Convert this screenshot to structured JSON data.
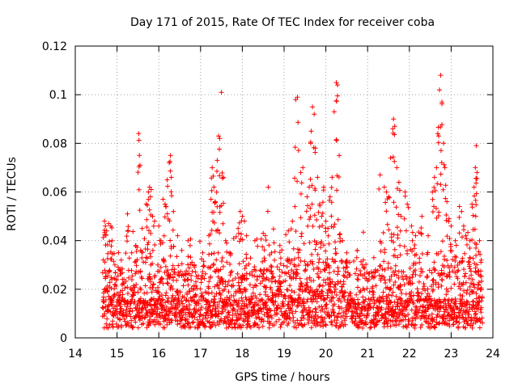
{
  "chart_data": {
    "type": "scatter",
    "title": "Day 171 of 2015, Rate Of TEC Index for receiver coba",
    "xlabel": "GPS time / hours",
    "ylabel": "ROTI / TECUs",
    "xlim": [
      14,
      24
    ],
    "ylim": [
      0,
      0.12
    ],
    "grid": true,
    "marker": "+",
    "color": "#ff0000",
    "x_ticks": [
      "14",
      "15",
      "16",
      "17",
      "18",
      "19",
      "20",
      "21",
      "22",
      "23",
      "24"
    ],
    "y_ticks": [
      "0",
      "0.02",
      "0.04",
      "0.06",
      "0.08",
      "0.1",
      "0.12"
    ],
    "x_tick_values": [
      14,
      15,
      16,
      17,
      18,
      19,
      20,
      21,
      22,
      23,
      24
    ],
    "y_tick_values": [
      0,
      0.02,
      0.04,
      0.06,
      0.08,
      0.1,
      0.12
    ],
    "data_range": {
      "x_start": 14.65,
      "x_end": 23.75
    },
    "spikes": [
      [
        14.7,
        0.048
      ],
      [
        14.72,
        0.046
      ],
      [
        14.75,
        0.044
      ],
      [
        14.8,
        0.047
      ],
      [
        14.85,
        0.046
      ],
      [
        14.88,
        0.04
      ],
      [
        14.95,
        0.03
      ],
      [
        15.05,
        0.028
      ],
      [
        15.1,
        0.032
      ],
      [
        15.25,
        0.051
      ],
      [
        15.35,
        0.035
      ],
      [
        15.45,
        0.038
      ],
      [
        15.52,
        0.084
      ],
      [
        15.55,
        0.071
      ],
      [
        15.6,
        0.045
      ],
      [
        15.7,
        0.055
      ],
      [
        15.75,
        0.06
      ],
      [
        15.78,
        0.062
      ],
      [
        15.8,
        0.058
      ],
      [
        15.82,
        0.061
      ],
      [
        15.85,
        0.05
      ],
      [
        15.9,
        0.048
      ],
      [
        16.0,
        0.046
      ],
      [
        16.05,
        0.04
      ],
      [
        16.1,
        0.057
      ],
      [
        16.15,
        0.055
      ],
      [
        16.2,
        0.065
      ],
      [
        16.25,
        0.072
      ],
      [
        16.28,
        0.075
      ],
      [
        16.3,
        0.066
      ],
      [
        16.35,
        0.052
      ],
      [
        16.45,
        0.042
      ],
      [
        16.55,
        0.036
      ],
      [
        16.7,
        0.04
      ],
      [
        16.75,
        0.038
      ],
      [
        16.85,
        0.03
      ],
      [
        17.05,
        0.035
      ],
      [
        17.2,
        0.042
      ],
      [
        17.25,
        0.057
      ],
      [
        17.28,
        0.07
      ],
      [
        17.32,
        0.062
      ],
      [
        17.35,
        0.056
      ],
      [
        17.4,
        0.073
      ],
      [
        17.43,
        0.083
      ],
      [
        17.46,
        0.082
      ],
      [
        17.5,
        0.101
      ],
      [
        17.55,
        0.066
      ],
      [
        17.6,
        0.04
      ],
      [
        17.7,
        0.035
      ],
      [
        17.9,
        0.045
      ],
      [
        17.95,
        0.052
      ],
      [
        18.0,
        0.05
      ],
      [
        18.05,
        0.048
      ],
      [
        18.1,
        0.042
      ],
      [
        18.3,
        0.04
      ],
      [
        18.5,
        0.043
      ],
      [
        18.55,
        0.042
      ],
      [
        18.62,
        0.062
      ],
      [
        18.7,
        0.035
      ],
      [
        18.9,
        0.038
      ],
      [
        19.1,
        0.044
      ],
      [
        19.2,
        0.048
      ],
      [
        19.28,
        0.098
      ],
      [
        19.32,
        0.099
      ],
      [
        19.4,
        0.068
      ],
      [
        19.45,
        0.07
      ],
      [
        19.55,
        0.058
      ],
      [
        19.6,
        0.062
      ],
      [
        19.65,
        0.085
      ],
      [
        19.68,
        0.095
      ],
      [
        19.72,
        0.092
      ],
      [
        19.75,
        0.078
      ],
      [
        19.8,
        0.066
      ],
      [
        19.85,
        0.055
      ],
      [
        19.9,
        0.05
      ],
      [
        19.95,
        0.062
      ],
      [
        20.0,
        0.048
      ],
      [
        20.05,
        0.045
      ],
      [
        20.1,
        0.058
      ],
      [
        20.15,
        0.066
      ],
      [
        20.2,
        0.093
      ],
      [
        20.25,
        0.105
      ],
      [
        20.28,
        0.104
      ],
      [
        20.32,
        0.075
      ],
      [
        20.4,
        0.04
      ],
      [
        20.5,
        0.035
      ],
      [
        20.75,
        0.036
      ],
      [
        20.9,
        0.032
      ],
      [
        21.15,
        0.033
      ],
      [
        21.3,
        0.067
      ],
      [
        21.4,
        0.062
      ],
      [
        21.45,
        0.06
      ],
      [
        21.5,
        0.058
      ],
      [
        21.55,
        0.074
      ],
      [
        21.6,
        0.086
      ],
      [
        21.62,
        0.09
      ],
      [
        21.65,
        0.087
      ],
      [
        21.7,
        0.07
      ],
      [
        21.75,
        0.064
      ],
      [
        21.8,
        0.05
      ],
      [
        21.9,
        0.06
      ],
      [
        21.95,
        0.055
      ],
      [
        22.05,
        0.046
      ],
      [
        22.15,
        0.042
      ],
      [
        22.3,
        0.05
      ],
      [
        22.45,
        0.042
      ],
      [
        22.55,
        0.06
      ],
      [
        22.6,
        0.066
      ],
      [
        22.65,
        0.07
      ],
      [
        22.68,
        0.084
      ],
      [
        22.72,
        0.102
      ],
      [
        22.75,
        0.108
      ],
      [
        22.78,
        0.097
      ],
      [
        22.82,
        0.08
      ],
      [
        22.85,
        0.07
      ],
      [
        22.9,
        0.056
      ],
      [
        22.95,
        0.049
      ],
      [
        23.0,
        0.046
      ],
      [
        23.1,
        0.04
      ],
      [
        23.2,
        0.054
      ],
      [
        23.25,
        0.052
      ],
      [
        23.3,
        0.046
      ],
      [
        23.35,
        0.042
      ],
      [
        23.45,
        0.04
      ],
      [
        23.5,
        0.055
      ],
      [
        23.55,
        0.062
      ],
      [
        23.58,
        0.07
      ],
      [
        23.6,
        0.079
      ],
      [
        23.62,
        0.068
      ],
      [
        23.68,
        0.04
      ],
      [
        23.72,
        0.032
      ]
    ]
  }
}
